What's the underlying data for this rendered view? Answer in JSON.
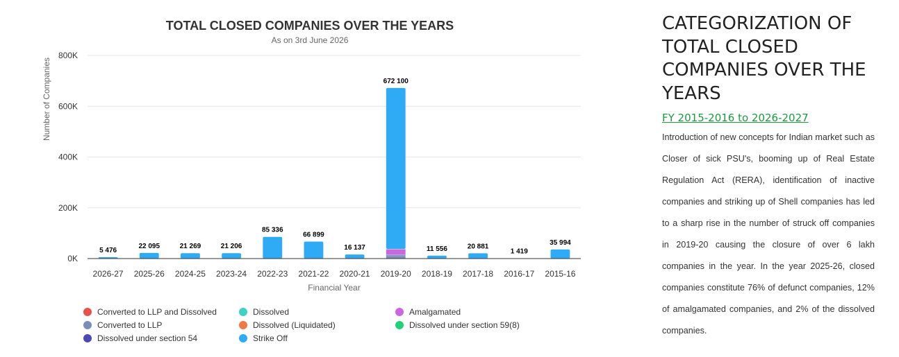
{
  "chart_data": {
    "type": "bar",
    "stacked": true,
    "title": "TOTAL CLOSED COMPANIES OVER THE YEARS",
    "subtitle": "As on 3rd June 2026",
    "xlabel": "Financial Year",
    "ylabel": "Number of Companies",
    "ylim": [
      0,
      800000
    ],
    "yticks": [
      0,
      200000,
      400000,
      600000,
      800000
    ],
    "ytick_labels": [
      "0K",
      "200K",
      "400K",
      "600K",
      "800K"
    ],
    "grid": true,
    "legend": "bottom",
    "categories": [
      "2026-27",
      "2025-26",
      "2024-25",
      "2023-24",
      "2022-23",
      "2021-22",
      "2020-21",
      "2019-20",
      "2018-19",
      "2017-18",
      "2016-17",
      "2015-16"
    ],
    "totals": [
      5476,
      22095,
      21269,
      21206,
      85336,
      66899,
      16137,
      672100,
      11556,
      20881,
      1419,
      35994
    ],
    "total_labels": [
      "5 476",
      "22 095",
      "21 269",
      "21 206",
      "85 336",
      "66 899",
      "16 137",
      "672 100",
      "11 556",
      "20 881",
      "1 419",
      "35 994"
    ],
    "series": [
      {
        "name": "Converted to LLP and Dissolved",
        "color": "#e8524a",
        "values": [
          0,
          0,
          0,
          0,
          0,
          0,
          0,
          0,
          0,
          0,
          0,
          0
        ]
      },
      {
        "name": "Converted to LLP",
        "color": "#7a8fb8",
        "values": [
          0,
          0,
          0,
          0,
          0,
          0,
          0,
          12000,
          0,
          0,
          0,
          0
        ]
      },
      {
        "name": "Dissolved under section 54",
        "color": "#4c49b5",
        "values": [
          0,
          0,
          0,
          0,
          0,
          0,
          0,
          4000,
          0,
          0,
          0,
          0
        ]
      },
      {
        "name": "Dissolved",
        "color": "#3fd1c5",
        "values": [
          0,
          0,
          0,
          0,
          0,
          0,
          0,
          0,
          0,
          0,
          0,
          0
        ]
      },
      {
        "name": "Dissolved (Liquidated)",
        "color": "#f07846",
        "values": [
          0,
          0,
          0,
          0,
          0,
          0,
          0,
          0,
          0,
          0,
          0,
          0
        ]
      },
      {
        "name": "Amalgamated",
        "color": "#cc66e0",
        "values": [
          0,
          0,
          0,
          0,
          0,
          0,
          0,
          22000,
          0,
          0,
          0,
          0
        ]
      },
      {
        "name": "Dissolved under section 59(8)",
        "color": "#1ed17a",
        "values": [
          0,
          0,
          0,
          0,
          0,
          0,
          0,
          0,
          0,
          0,
          0,
          0
        ]
      },
      {
        "name": "Strike Off",
        "color": "#2fabf5",
        "values": [
          5476,
          22095,
          21269,
          21206,
          85336,
          66899,
          16137,
          634100,
          11556,
          20881,
          1419,
          35994
        ]
      }
    ],
    "legend_layout": [
      [
        "Converted to LLP and Dissolved",
        "Dissolved",
        "Amalgamated"
      ],
      [
        "Converted to LLP",
        "Dissolved (Liquidated)",
        "Dissolved under section 59(8)"
      ],
      [
        "Dissolved under section 54",
        "Strike Off"
      ]
    ]
  },
  "side": {
    "heading": "CATEGORIZATION OF TOTAL CLOSED COMPANIES OVER THE YEARS",
    "link": "FY 2015-2016 to 2026-2027",
    "paragraph": "Introduction of new concepts for Indian market such as Closer of sick PSU's, booming up of Real Estate Regulation Act (RERA), identification of inactive companies and striking up of Shell companies has led to a sharp rise in the number of struck off companies in 2019-20 causing the closure of over 6 lakh companies in the year. In the year 2025-26, closed companies constitute 76% of defunct companies, 12% of amalgamated companies, and 2% of the dissolved companies."
  }
}
